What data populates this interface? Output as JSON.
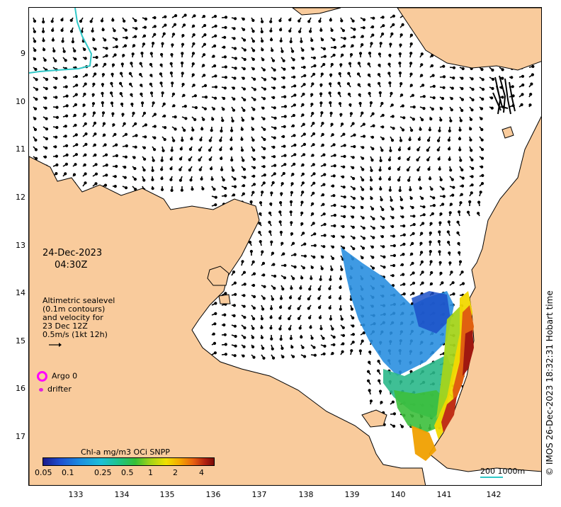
{
  "map": {
    "date": "24-Dec-2023",
    "time": "04:30Z",
    "info_lines": [
      "Altimetric sealevel",
      "(0.1m contours)",
      "and velocity for",
      "23 Dec 12Z",
      "0.5m/s (1kt 12h)"
    ],
    "lat_ticks": [
      "9",
      "10",
      "11",
      "12",
      "13",
      "14",
      "15",
      "16",
      "17"
    ],
    "lon_ticks": [
      "133",
      "134",
      "135",
      "136",
      "137",
      "138",
      "139",
      "140",
      "141",
      "142"
    ],
    "legend": {
      "argo": "Argo 0",
      "drifter": "drifter"
    },
    "colorbar": {
      "title": "Chl-a mg/m3 OCi SNPP",
      "ticks": [
        "0.05",
        "0.1",
        "0.25",
        "0.5",
        "1",
        "2",
        "4"
      ]
    },
    "scale": "200  1000m",
    "credit": "© IMOS 26-Dec-2023 18:32:31 Hobart time",
    "colors": {
      "land": "#f9cb9c",
      "ocean": "#ffffff",
      "argo": "#ff00ff",
      "drifter": "#e020e0",
      "contour": "#30c8c8"
    }
  }
}
